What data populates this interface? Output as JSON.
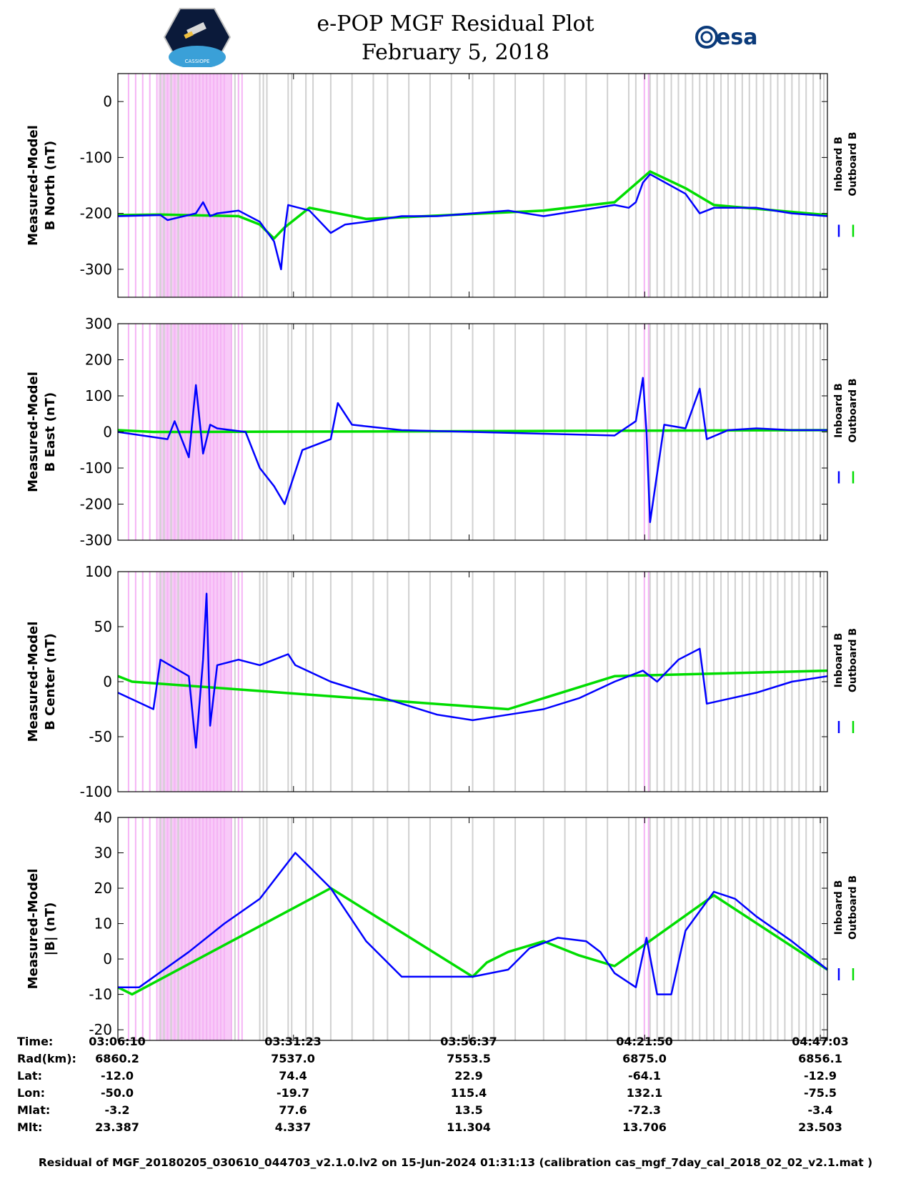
{
  "header": {
    "title_line1": "e-POP MGF Residual Plot",
    "title_line2": "February 5, 2018",
    "logo_left_text": "CASSIOPE",
    "logo_right_text": "esa"
  },
  "colors": {
    "inboard": "#0000ff",
    "outboard": "#00dd00",
    "gray_band": "#d0d0d0",
    "pink_band": "#f5b3f5"
  },
  "chart_data": [
    {
      "type": "line",
      "ylabel": [
        "Measured-Model",
        "B North (nT)"
      ],
      "ylim": [
        -350,
        50
      ],
      "yticks": [
        0,
        -100,
        -200,
        -300
      ],
      "legend": [
        "Inboard B",
        "Outboard B"
      ],
      "series": [
        {
          "name": "Inboard B",
          "color": "#0000ff",
          "t": [
            0,
            0.06,
            0.07,
            0.11,
            0.12,
            0.13,
            0.14,
            0.17,
            0.2,
            0.22,
            0.23,
            0.235,
            0.24,
            0.27,
            0.3,
            0.32,
            0.35,
            0.4,
            0.45,
            0.5,
            0.55,
            0.6,
            0.65,
            0.7,
            0.72,
            0.73,
            0.74,
            0.75,
            0.8,
            0.82,
            0.84,
            0.9,
            0.95,
            1.0
          ],
          "v": [
            -205,
            -203,
            -212,
            -200,
            -180,
            -205,
            -200,
            -195,
            -215,
            -250,
            -300,
            -230,
            -185,
            -195,
            -235,
            -220,
            -215,
            -205,
            -205,
            -200,
            -195,
            -205,
            -195,
            -185,
            -190,
            -180,
            -145,
            -130,
            -165,
            -200,
            -190,
            -190,
            -200,
            -205
          ]
        },
        {
          "name": "Outboard B",
          "color": "#00dd00",
          "t": [
            0,
            0.06,
            0.17,
            0.2,
            0.22,
            0.235,
            0.27,
            0.35,
            0.6,
            0.7,
            0.75,
            0.8,
            0.84,
            1.0
          ],
          "v": [
            -203,
            -202,
            -205,
            -220,
            -245,
            -225,
            -190,
            -210,
            -195,
            -180,
            -125,
            -155,
            -185,
            -203
          ]
        }
      ]
    },
    {
      "type": "line",
      "ylabel": [
        "Measured-Model",
        "B East (nT)"
      ],
      "ylim": [
        -300,
        300
      ],
      "yticks": [
        300,
        200,
        100,
        0,
        -100,
        -200,
        -300
      ],
      "legend": [
        "Inboard B",
        "Outboard B"
      ],
      "series": [
        {
          "name": "Inboard B",
          "color": "#0000ff",
          "t": [
            0,
            0.07,
            0.08,
            0.1,
            0.11,
            0.12,
            0.13,
            0.14,
            0.18,
            0.2,
            0.22,
            0.235,
            0.26,
            0.3,
            0.31,
            0.33,
            0.4,
            0.5,
            0.6,
            0.7,
            0.73,
            0.74,
            0.745,
            0.75,
            0.77,
            0.8,
            0.82,
            0.83,
            0.86,
            0.9,
            0.95,
            1.0
          ],
          "v": [
            0,
            -20,
            30,
            -70,
            130,
            -60,
            20,
            10,
            0,
            -100,
            -150,
            -200,
            -50,
            -20,
            80,
            20,
            5,
            0,
            -5,
            -10,
            30,
            150,
            0,
            -250,
            20,
            10,
            120,
            -20,
            5,
            10,
            5,
            5
          ]
        },
        {
          "name": "Outboard B",
          "color": "#00dd00",
          "t": [
            0,
            0.05,
            0.1,
            1.0
          ],
          "v": [
            5,
            0,
            0,
            5
          ]
        }
      ]
    },
    {
      "type": "line",
      "ylabel": [
        "Measured-Model",
        "B Center (nT)"
      ],
      "ylim": [
        -100,
        100
      ],
      "yticks": [
        100,
        50,
        0,
        -50,
        -100
      ],
      "legend": [
        "Inboard B",
        "Outboard B"
      ],
      "series": [
        {
          "name": "Inboard B",
          "color": "#0000ff",
          "t": [
            0,
            0.05,
            0.06,
            0.1,
            0.11,
            0.12,
            0.125,
            0.13,
            0.14,
            0.17,
            0.2,
            0.24,
            0.25,
            0.3,
            0.4,
            0.45,
            0.5,
            0.55,
            0.6,
            0.65,
            0.7,
            0.74,
            0.76,
            0.79,
            0.82,
            0.83,
            0.9,
            0.95,
            1.0
          ],
          "v": [
            -10,
            -25,
            20,
            5,
            -60,
            20,
            80,
            -40,
            15,
            20,
            15,
            25,
            15,
            0,
            -20,
            -30,
            -35,
            -30,
            -25,
            -15,
            0,
            10,
            0,
            20,
            30,
            -20,
            -10,
            0,
            5
          ]
        },
        {
          "name": "Outboard B",
          "color": "#00dd00",
          "t": [
            0,
            0.02,
            0.55,
            0.65,
            0.7,
            1.0
          ],
          "v": [
            5,
            0,
            -25,
            -5,
            5,
            10
          ]
        }
      ]
    },
    {
      "type": "line",
      "ylabel": [
        "Measured-Model",
        "|B| (nT)"
      ],
      "ylim": [
        -23,
        40
      ],
      "yticks": [
        40,
        30,
        20,
        10,
        0,
        -10,
        -20
      ],
      "legend": [
        "Inboard B",
        "Outboard B"
      ],
      "series": [
        {
          "name": "Inboard B",
          "color": "#0000ff",
          "t": [
            0,
            0.03,
            0.1,
            0.15,
            0.2,
            0.25,
            0.3,
            0.35,
            0.4,
            0.45,
            0.5,
            0.55,
            0.58,
            0.62,
            0.66,
            0.68,
            0.7,
            0.73,
            0.745,
            0.76,
            0.78,
            0.8,
            0.84,
            0.87,
            0.9,
            0.95,
            1.0
          ],
          "v": [
            -8,
            -8,
            2,
            10,
            17,
            30,
            20,
            5,
            -5,
            -5,
            -5,
            -3,
            3,
            6,
            5,
            2,
            -4,
            -8,
            6,
            -10,
            -10,
            8,
            19,
            17,
            12,
            5,
            -3
          ]
        },
        {
          "name": "Outboard B",
          "color": "#00dd00",
          "t": [
            0,
            0.02,
            0.3,
            0.5,
            0.52,
            0.55,
            0.6,
            0.65,
            0.7,
            0.84,
            1.0
          ],
          "v": [
            -8,
            -10,
            20,
            -5,
            -1,
            2,
            5,
            1,
            -2,
            18,
            -3
          ]
        }
      ]
    }
  ],
  "bands": {
    "gray_positions": [
      0.06,
      0.065,
      0.075,
      0.08,
      0.085,
      0.09,
      0.1,
      0.105,
      0.115,
      0.125,
      0.14,
      0.145,
      0.16,
      0.165,
      0.17,
      0.2,
      0.205,
      0.21,
      0.24,
      0.245,
      0.265,
      0.275,
      0.3,
      0.33,
      0.36,
      0.38,
      0.41,
      0.44,
      0.47,
      0.5,
      0.53,
      0.56,
      0.6,
      0.63,
      0.66,
      0.69,
      0.72,
      0.73,
      0.75,
      0.76,
      0.77,
      0.78,
      0.79,
      0.8,
      0.81,
      0.82,
      0.83,
      0.84,
      0.85,
      0.86,
      0.87,
      0.88,
      0.89,
      0.9,
      0.91,
      0.92,
      0.93,
      0.94,
      0.95,
      0.96,
      0.97,
      0.98,
      0.99,
      0.995
    ],
    "pink_positions": [
      0.015,
      0.025,
      0.035,
      0.045,
      0.055,
      0.07,
      0.08,
      0.09,
      0.095,
      0.1,
      0.105,
      0.11,
      0.115,
      0.12,
      0.125,
      0.13,
      0.135,
      0.14,
      0.145,
      0.15,
      0.16,
      0.17,
      0.175,
      0.742,
      0.748
    ],
    "pink_block": [
      0.057,
      0.16
    ]
  },
  "footer": {
    "rows": [
      {
        "label": "Time:",
        "values": [
          "03:06:10",
          "03:31:23",
          "03:56:37",
          "04:21:50",
          "04:47:03"
        ]
      },
      {
        "label": "Rad(km):",
        "values": [
          "6860.2",
          "7537.0",
          "7553.5",
          "6875.0",
          "6856.1"
        ]
      },
      {
        "label": "Lat:",
        "values": [
          "-12.0",
          "74.4",
          "22.9",
          "-64.1",
          "-12.9"
        ]
      },
      {
        "label": "Lon:",
        "values": [
          "-50.0",
          "-19.7",
          "115.4",
          "132.1",
          "-75.5"
        ]
      },
      {
        "label": "Mlat:",
        "values": [
          "-3.2",
          "77.6",
          "13.5",
          "-72.3",
          "-3.4"
        ]
      },
      {
        "label": "Mlt:",
        "values": [
          "23.387",
          "4.337",
          "11.304",
          "13.706",
          "23.503"
        ]
      }
    ],
    "caption": "Residual of MGF_20180205_030610_044703_v2.1.0.lv2 on 15-Jun-2024 01:31:13 (calibration cas_mgf_7day_cal_2018_02_02_v2.1.mat )"
  }
}
